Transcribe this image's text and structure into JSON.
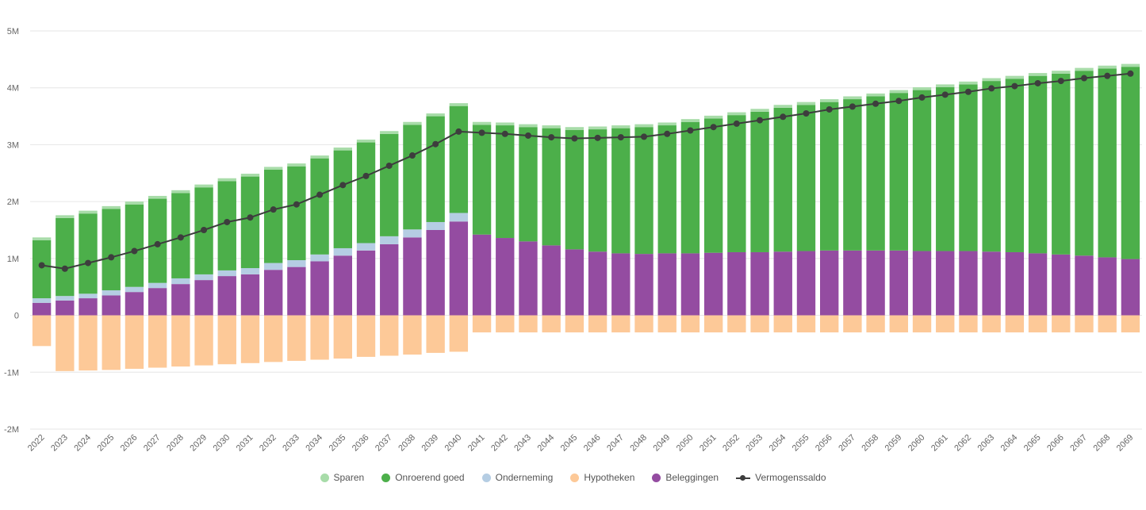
{
  "chart_data": {
    "type": "bar",
    "stacked": true,
    "title": "",
    "xlabel": "",
    "ylabel": "",
    "ylim": [
      -2000000,
      5000000
    ],
    "y_ticks": [
      {
        "value": 5000000,
        "label": "5M"
      },
      {
        "value": 4000000,
        "label": "4M"
      },
      {
        "value": 3000000,
        "label": "3M"
      },
      {
        "value": 2000000,
        "label": "2M"
      },
      {
        "value": 1000000,
        "label": "1M"
      },
      {
        "value": 0,
        "label": "0"
      },
      {
        "value": -1000000,
        "label": "-1M"
      },
      {
        "value": -2000000,
        "label": "-2M"
      }
    ],
    "grid": true,
    "legend_position": "bottom",
    "categories": [
      "2022",
      "2023",
      "2024",
      "2025",
      "2026",
      "2027",
      "2028",
      "2029",
      "2030",
      "2031",
      "2032",
      "2033",
      "2034",
      "2035",
      "2036",
      "2037",
      "2038",
      "2039",
      "2040",
      "2041",
      "2042",
      "2043",
      "2044",
      "2045",
      "2046",
      "2047",
      "2048",
      "2049",
      "2050",
      "2051",
      "2052",
      "2053",
      "2054",
      "2055",
      "2056",
      "2057",
      "2058",
      "2059",
      "2060",
      "2061",
      "2062",
      "2063",
      "2064",
      "2065",
      "2066",
      "2067",
      "2068",
      "2069"
    ],
    "series": [
      {
        "name": "Beleggingen",
        "key": "beleggingen",
        "type": "bar",
        "color": "#944ca1",
        "values": [
          220000,
          260000,
          300000,
          350000,
          410000,
          480000,
          550000,
          620000,
          690000,
          720000,
          800000,
          850000,
          950000,
          1050000,
          1140000,
          1250000,
          1370000,
          1500000,
          1650000,
          1420000,
          1360000,
          1300000,
          1230000,
          1160000,
          1120000,
          1090000,
          1080000,
          1090000,
          1090000,
          1100000,
          1110000,
          1110000,
          1120000,
          1130000,
          1140000,
          1140000,
          1140000,
          1140000,
          1130000,
          1130000,
          1130000,
          1120000,
          1110000,
          1090000,
          1070000,
          1050000,
          1020000,
          990000
        ]
      },
      {
        "name": "Onderneming",
        "key": "onderneming",
        "type": "bar",
        "color": "#b5cde3",
        "values": [
          80000,
          80000,
          80000,
          90000,
          90000,
          90000,
          100000,
          100000,
          100000,
          110000,
          120000,
          120000,
          120000,
          130000,
          130000,
          140000,
          140000,
          140000,
          150000,
          0,
          0,
          0,
          0,
          0,
          0,
          0,
          0,
          0,
          0,
          0,
          0,
          0,
          0,
          0,
          0,
          0,
          0,
          0,
          0,
          0,
          0,
          0,
          0,
          0,
          0,
          0,
          0,
          0
        ]
      },
      {
        "name": "Onroerend goed",
        "key": "onroerend_goed",
        "type": "bar",
        "color": "#4caf4a",
        "values": [
          1020000,
          1370000,
          1410000,
          1430000,
          1450000,
          1480000,
          1500000,
          1530000,
          1570000,
          1610000,
          1640000,
          1650000,
          1690000,
          1720000,
          1770000,
          1800000,
          1840000,
          1860000,
          1880000,
          1930000,
          1980000,
          2010000,
          2060000,
          2100000,
          2150000,
          2200000,
          2230000,
          2250000,
          2310000,
          2360000,
          2410000,
          2470000,
          2530000,
          2570000,
          2610000,
          2660000,
          2710000,
          2770000,
          2830000,
          2880000,
          2930000,
          3000000,
          3050000,
          3120000,
          3180000,
          3250000,
          3320000,
          3380000
        ]
      },
      {
        "name": "Sparen",
        "key": "sparen",
        "type": "bar",
        "color": "#a8dca9",
        "values": [
          50000,
          50000,
          50000,
          50000,
          50000,
          50000,
          50000,
          50000,
          50000,
          50000,
          50000,
          50000,
          50000,
          50000,
          50000,
          50000,
          50000,
          50000,
          50000,
          50000,
          50000,
          50000,
          50000,
          50000,
          50000,
          50000,
          50000,
          50000,
          50000,
          50000,
          50000,
          50000,
          50000,
          50000,
          50000,
          50000,
          50000,
          50000,
          50000,
          50000,
          50000,
          50000,
          50000,
          50000,
          50000,
          50000,
          50000,
          50000
        ]
      },
      {
        "name": "Hypotheken",
        "key": "hypotheken",
        "type": "bar",
        "color": "#fdc998",
        "values": [
          -540000,
          -980000,
          -970000,
          -960000,
          -940000,
          -920000,
          -900000,
          -880000,
          -860000,
          -840000,
          -820000,
          -800000,
          -780000,
          -760000,
          -730000,
          -710000,
          -690000,
          -660000,
          -640000,
          -300000,
          -300000,
          -300000,
          -300000,
          -300000,
          -300000,
          -300000,
          -300000,
          -300000,
          -300000,
          -300000,
          -300000,
          -300000,
          -300000,
          -300000,
          -300000,
          -300000,
          -300000,
          -300000,
          -300000,
          -300000,
          -300000,
          -300000,
          -300000,
          -300000,
          -300000,
          -300000,
          -300000,
          -300000
        ]
      },
      {
        "name": "Vermogenssaldo",
        "key": "vermogenssaldo",
        "type": "line",
        "color": "#3d3d3d",
        "values": [
          880000,
          820000,
          920000,
          1020000,
          1130000,
          1250000,
          1370000,
          1500000,
          1640000,
          1720000,
          1860000,
          1950000,
          2120000,
          2290000,
          2450000,
          2630000,
          2810000,
          3010000,
          3230000,
          3210000,
          3190000,
          3160000,
          3130000,
          3110000,
          3120000,
          3130000,
          3140000,
          3190000,
          3250000,
          3310000,
          3370000,
          3430000,
          3490000,
          3550000,
          3620000,
          3670000,
          3720000,
          3770000,
          3830000,
          3880000,
          3930000,
          3990000,
          4030000,
          4080000,
          4120000,
          4170000,
          4210000,
          4250000
        ]
      }
    ]
  },
  "legend": {
    "items": [
      {
        "label": "Sparen",
        "color": "#a8dca9",
        "shape": "circle"
      },
      {
        "label": "Onroerend goed",
        "color": "#4caf4a",
        "shape": "circle"
      },
      {
        "label": "Onderneming",
        "color": "#b5cde3",
        "shape": "circle"
      },
      {
        "label": "Hypotheken",
        "color": "#fdc998",
        "shape": "circle"
      },
      {
        "label": "Beleggingen",
        "color": "#944ca1",
        "shape": "circle"
      },
      {
        "label": "Vermogenssaldo",
        "color": "#3d3d3d",
        "shape": "line-marker"
      }
    ]
  }
}
